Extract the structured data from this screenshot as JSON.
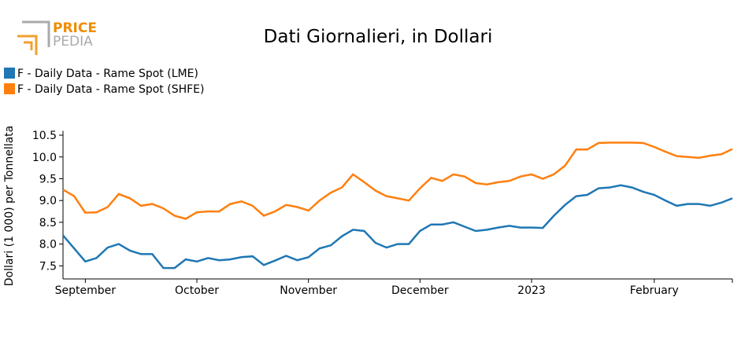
{
  "logo": {
    "line1": "PRICE",
    "line2": "PEDIA"
  },
  "chart_data": {
    "type": "line",
    "title": "Dati Giornalieri, in Dollari",
    "y_label": "Dollari (1 000) per Tonnellata",
    "categories": [
      null,
      null,
      "September",
      null,
      null,
      null,
      null,
      null,
      null,
      null,
      null,
      null,
      "October",
      null,
      null,
      null,
      null,
      null,
      null,
      null,
      null,
      null,
      "November",
      null,
      null,
      null,
      null,
      null,
      null,
      null,
      null,
      null,
      "December",
      null,
      null,
      null,
      null,
      null,
      null,
      null,
      null,
      null,
      "2023",
      null,
      null,
      null,
      null,
      null,
      null,
      null,
      null,
      null,
      null,
      "February",
      null,
      null,
      null,
      null,
      null,
      null,
      null
    ],
    "series": [
      {
        "name": "F - Daily Data - Rame Spot (LME)",
        "color": "#1f77b4",
        "values": [
          8.2,
          7.9,
          7.6,
          7.68,
          7.92,
          8.0,
          7.85,
          7.77,
          7.77,
          7.45,
          7.45,
          7.65,
          7.6,
          7.68,
          7.63,
          7.65,
          7.7,
          7.72,
          7.52,
          7.62,
          7.73,
          7.63,
          7.7,
          7.9,
          7.97,
          8.18,
          8.33,
          8.3,
          8.03,
          7.92,
          8.0,
          8.0,
          8.3,
          8.45,
          8.45,
          8.5,
          8.4,
          8.3,
          8.33,
          8.38,
          8.42,
          8.38,
          8.38,
          8.37,
          8.65,
          8.9,
          9.1,
          9.13,
          9.28,
          9.3,
          9.35,
          9.3,
          9.2,
          9.13,
          9.0,
          8.88,
          8.92,
          8.92,
          8.88,
          8.95,
          9.05
        ]
      },
      {
        "name": "F - Daily Data - Rame Spot (SHFE)",
        "color": "#ff7f0e",
        "values": [
          9.25,
          9.1,
          8.72,
          8.73,
          8.85,
          9.15,
          9.05,
          8.88,
          8.92,
          8.82,
          8.65,
          8.58,
          8.73,
          8.75,
          8.75,
          8.92,
          8.98,
          8.88,
          8.65,
          8.75,
          8.9,
          8.85,
          8.77,
          9.0,
          9.18,
          9.3,
          9.6,
          9.42,
          9.23,
          9.1,
          9.05,
          9.0,
          9.28,
          9.52,
          9.45,
          9.6,
          9.55,
          9.4,
          9.37,
          9.42,
          9.45,
          9.55,
          9.6,
          9.5,
          9.6,
          9.8,
          10.17,
          10.17,
          10.32,
          10.33,
          10.33,
          10.33,
          10.32,
          10.23,
          10.12,
          10.02,
          10.0,
          9.98,
          10.03,
          10.06,
          10.18
        ]
      }
    ],
    "ylim": [
      7.2,
      10.6
    ],
    "yticks": [
      7.5,
      {
        "value": 8,
        "label": "8.0"
      },
      8.5,
      {
        "value": 9,
        "label": "9.0"
      },
      9.5,
      {
        "value": 10,
        "label": "10.0"
      },
      10.5
    ],
    "grid": false
  }
}
